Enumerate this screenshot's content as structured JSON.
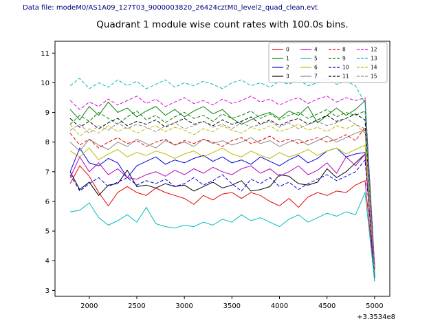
{
  "header": {
    "data_file_label": "Data file: modeM0/AS1A09_127T03_9000003820_26424cztM0_level2_quad_clean.evt"
  },
  "chart_data": {
    "type": "line",
    "title": "Quadrant 1 module wise count rates with 100.0s bins.",
    "xlabel": "",
    "ylabel": "",
    "x_offset_label": "+3.3534e8",
    "xlim": [
      1640,
      5160
    ],
    "ylim": [
      2.8,
      11.4
    ],
    "xticks": [
      2000,
      2500,
      3000,
      3500,
      4000,
      4500,
      5000
    ],
    "yticks": [
      3,
      4,
      5,
      6,
      7,
      8,
      9,
      10,
      11
    ],
    "grid": false,
    "legend_position": "upper right",
    "legend_columns": 4,
    "x": [
      1800,
      1900,
      2000,
      2100,
      2200,
      2300,
      2400,
      2500,
      2600,
      2700,
      2800,
      2900,
      3000,
      3100,
      3200,
      3300,
      3400,
      3500,
      3600,
      3700,
      3800,
      3900,
      4000,
      4100,
      4200,
      4300,
      4400,
      4500,
      4600,
      4700,
      4800,
      4900,
      5000
    ],
    "series": [
      {
        "name": "0",
        "color": "#e60000",
        "dashed": false,
        "values": [
          6.6,
          7.2,
          6.85,
          6.3,
          5.85,
          6.3,
          6.5,
          6.3,
          6.2,
          6.45,
          6.3,
          6.2,
          6.1,
          5.9,
          6.2,
          6.05,
          6.25,
          6.3,
          6.1,
          6.3,
          6.2,
          6.0,
          5.85,
          6.1,
          5.8,
          6.15,
          6.3,
          6.2,
          6.35,
          6.3,
          6.55,
          6.7,
          3.4
        ]
      },
      {
        "name": "1",
        "color": "#007f00",
        "dashed": false,
        "values": [
          9.1,
          8.75,
          9.2,
          8.9,
          9.35,
          9.0,
          9.15,
          8.85,
          9.05,
          9.2,
          8.9,
          9.1,
          8.85,
          9.05,
          9.2,
          8.95,
          9.1,
          8.8,
          8.6,
          8.75,
          8.9,
          9.0,
          8.8,
          9.05,
          8.9,
          9.2,
          8.65,
          8.9,
          9.15,
          8.9,
          9.1,
          9.4,
          3.8
        ]
      },
      {
        "name": "2",
        "color": "#0000e6",
        "dashed": false,
        "values": [
          7.0,
          7.8,
          7.3,
          7.2,
          7.45,
          7.3,
          6.8,
          7.2,
          7.35,
          7.5,
          7.25,
          7.4,
          7.3,
          7.45,
          7.55,
          7.35,
          7.5,
          7.3,
          7.4,
          7.25,
          7.5,
          7.35,
          7.2,
          7.4,
          7.55,
          7.3,
          7.45,
          7.7,
          7.8,
          7.5,
          7.6,
          7.65,
          3.5
        ]
      },
      {
        "name": "3",
        "color": "#000000",
        "dashed": false,
        "values": [
          7.0,
          6.4,
          6.65,
          6.2,
          6.55,
          6.6,
          7.05,
          6.5,
          6.55,
          6.45,
          6.6,
          6.5,
          6.55,
          6.35,
          6.5,
          6.65,
          6.45,
          6.55,
          6.7,
          6.35,
          6.4,
          6.5,
          6.9,
          6.85,
          6.6,
          6.55,
          6.65,
          7.1,
          6.8,
          7.0,
          7.3,
          7.6,
          3.5
        ]
      },
      {
        "name": "4",
        "color": "#bb00bb",
        "dashed": false,
        "values": [
          6.8,
          7.5,
          7.0,
          7.3,
          6.9,
          7.1,
          6.8,
          6.75,
          6.9,
          7.0,
          6.85,
          7.05,
          6.9,
          7.1,
          6.95,
          7.15,
          7.0,
          6.9,
          7.1,
          7.2,
          6.95,
          7.1,
          6.85,
          7.0,
          7.2,
          6.9,
          7.05,
          7.3,
          6.95,
          7.5,
          7.2,
          7.6,
          3.4
        ]
      },
      {
        "name": "5",
        "color": "#00bbbb",
        "dashed": false,
        "values": [
          5.65,
          5.7,
          5.95,
          5.45,
          5.2,
          5.35,
          5.55,
          5.3,
          5.8,
          5.25,
          5.15,
          5.1,
          5.2,
          5.15,
          5.3,
          5.2,
          5.4,
          5.3,
          5.55,
          5.35,
          5.45,
          5.3,
          5.15,
          5.4,
          5.55,
          5.3,
          5.45,
          5.6,
          5.5,
          5.65,
          5.55,
          6.3,
          3.3
        ]
      },
      {
        "name": "6",
        "color": "#bbbb00",
        "dashed": false,
        "values": [
          7.7,
          7.5,
          7.8,
          7.4,
          7.6,
          7.75,
          7.5,
          7.65,
          7.55,
          7.7,
          7.6,
          7.45,
          7.6,
          7.7,
          7.5,
          7.65,
          7.8,
          7.6,
          7.5,
          7.7,
          7.55,
          7.45,
          7.65,
          7.5,
          7.6,
          7.75,
          7.55,
          7.7,
          7.8,
          7.6,
          7.75,
          7.9,
          3.6
        ]
      },
      {
        "name": "7",
        "color": "#888888",
        "dashed": false,
        "values": [
          8.0,
          7.7,
          8.1,
          7.9,
          7.75,
          8.0,
          7.85,
          8.1,
          7.95,
          7.8,
          8.05,
          7.9,
          8.0,
          7.85,
          8.1,
          7.95,
          8.05,
          7.9,
          8.0,
          8.15,
          7.95,
          8.05,
          7.85,
          8.0,
          8.1,
          7.9,
          8.05,
          8.2,
          8.0,
          8.15,
          8.3,
          8.4,
          3.55
        ]
      },
      {
        "name": "8",
        "color": "#e60000",
        "dashed": true,
        "values": [
          8.3,
          7.9,
          8.1,
          7.8,
          8.0,
          8.15,
          7.95,
          8.05,
          7.85,
          8.0,
          8.1,
          7.9,
          8.05,
          7.95,
          8.1,
          8.0,
          7.85,
          8.05,
          8.15,
          7.95,
          8.05,
          8.2,
          8.0,
          8.1,
          7.95,
          8.05,
          8.15,
          8.0,
          8.1,
          8.25,
          8.05,
          8.5,
          3.5
        ]
      },
      {
        "name": "9",
        "color": "#007f00",
        "dashed": true,
        "values": [
          8.6,
          8.9,
          8.7,
          9.0,
          8.8,
          8.6,
          8.85,
          9.05,
          8.75,
          8.9,
          8.65,
          8.85,
          9.0,
          8.8,
          8.9,
          8.7,
          8.95,
          8.8,
          8.9,
          9.05,
          8.8,
          8.95,
          8.75,
          8.9,
          9.0,
          8.8,
          8.95,
          9.1,
          8.85,
          9.0,
          8.9,
          9.05,
          3.75
        ]
      },
      {
        "name": "10",
        "color": "#0000e6",
        "dashed": true,
        "values": [
          6.9,
          6.35,
          6.6,
          6.8,
          6.5,
          6.65,
          6.8,
          6.55,
          6.7,
          6.6,
          6.75,
          6.5,
          6.6,
          6.8,
          6.55,
          6.7,
          6.9,
          6.6,
          6.35,
          6.75,
          6.6,
          6.8,
          6.5,
          6.65,
          6.4,
          6.6,
          6.75,
          6.9,
          6.7,
          6.85,
          7.0,
          7.4,
          3.45
        ]
      },
      {
        "name": "11",
        "color": "#000000",
        "dashed": true,
        "values": [
          8.8,
          8.5,
          8.7,
          8.45,
          8.65,
          8.8,
          8.55,
          8.7,
          8.6,
          8.75,
          8.5,
          8.65,
          8.8,
          8.6,
          8.7,
          8.55,
          8.75,
          8.6,
          8.7,
          8.85,
          8.6,
          8.75,
          8.55,
          8.7,
          8.8,
          8.6,
          8.75,
          8.9,
          8.7,
          8.8,
          8.95,
          8.75,
          3.7
        ]
      },
      {
        "name": "12",
        "color": "#dd00dd",
        "dashed": true,
        "values": [
          9.4,
          9.1,
          9.35,
          9.2,
          9.45,
          9.25,
          9.4,
          9.55,
          9.3,
          9.45,
          9.2,
          9.35,
          9.5,
          9.3,
          9.4,
          9.25,
          9.45,
          9.3,
          9.4,
          9.55,
          9.35,
          9.45,
          9.25,
          9.4,
          9.5,
          9.3,
          9.45,
          9.55,
          9.35,
          9.5,
          9.4,
          9.5,
          3.85
        ]
      },
      {
        "name": "13",
        "color": "#00bbbb",
        "dashed": true,
        "values": [
          9.9,
          10.15,
          9.8,
          10.0,
          9.85,
          10.1,
          9.9,
          10.05,
          9.8,
          9.95,
          10.1,
          9.85,
          10.0,
          9.9,
          10.05,
          9.95,
          9.8,
          10.0,
          10.1,
          9.9,
          10.0,
          9.85,
          10.05,
          9.95,
          10.1,
          9.9,
          10.0,
          10.15,
          9.95,
          10.05,
          9.9,
          9.3,
          3.3
        ]
      },
      {
        "name": "14",
        "color": "#bbbb00",
        "dashed": true,
        "values": [
          8.6,
          8.2,
          8.45,
          8.3,
          8.55,
          8.35,
          8.5,
          8.3,
          8.45,
          8.55,
          8.35,
          8.5,
          8.4,
          8.25,
          8.45,
          8.35,
          8.55,
          8.4,
          8.3,
          8.5,
          8.4,
          8.55,
          8.35,
          8.45,
          8.6,
          8.4,
          8.5,
          8.35,
          8.55,
          8.45,
          8.6,
          8.3,
          3.6
        ]
      },
      {
        "name": "15",
        "color": "#888888",
        "dashed": true,
        "values": [
          8.4,
          8.6,
          8.3,
          8.55,
          8.4,
          8.65,
          8.45,
          8.6,
          8.5,
          8.35,
          8.55,
          8.65,
          8.45,
          8.55,
          8.7,
          8.5,
          8.6,
          8.45,
          8.65,
          8.5,
          8.6,
          8.7,
          8.5,
          8.65,
          8.45,
          8.6,
          8.7,
          8.55,
          8.65,
          8.8,
          8.6,
          8.45,
          3.65
        ]
      }
    ]
  }
}
